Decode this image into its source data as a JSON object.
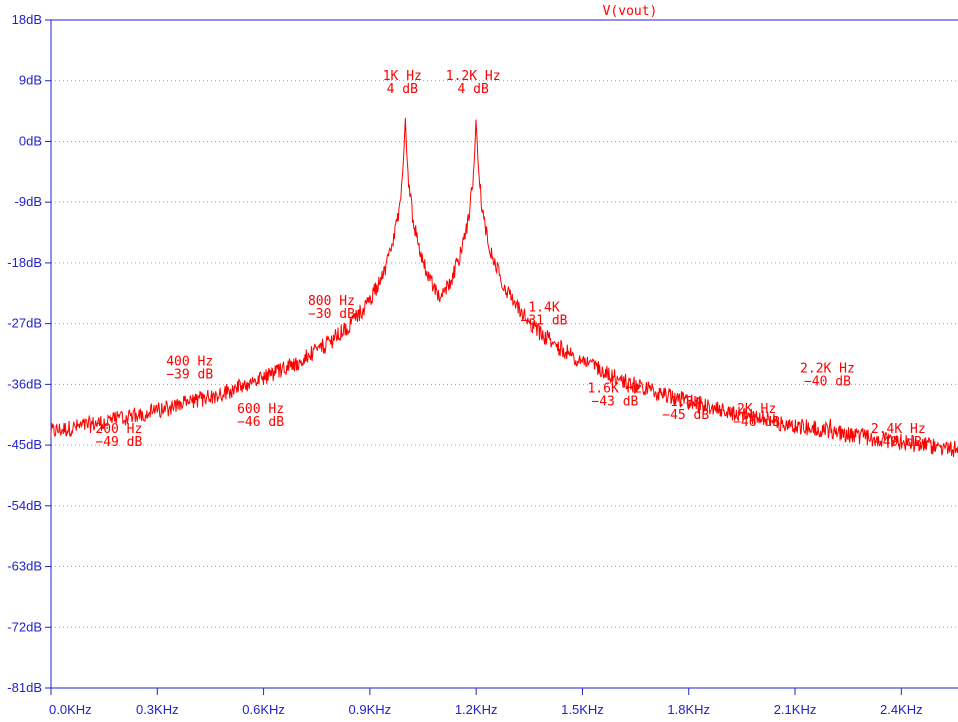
{
  "chart_data": {
    "type": "line",
    "title": "V(vout)",
    "xlabel": "",
    "ylabel": "",
    "xlim": [
      0,
      2.56
    ],
    "ylim": [
      -81,
      18
    ],
    "x_ticks": [
      "0.0KHz",
      "0.3KHz",
      "0.6KHz",
      "0.9KHz",
      "1.2KHz",
      "1.5KHz",
      "1.8KHz",
      "2.1KHz",
      "2.4KHz"
    ],
    "x_tick_values": [
      0,
      0.3,
      0.6,
      0.9,
      1.2,
      1.5,
      1.8,
      2.1,
      2.4
    ],
    "y_ticks": [
      "18dB",
      "9dB",
      "0dB",
      "-9dB",
      "-18dB",
      "-27dB",
      "-36dB",
      "-45dB",
      "-54dB",
      "-63dB",
      "-72dB",
      "-81dB"
    ],
    "y_tick_values": [
      18,
      9,
      0,
      -9,
      -18,
      -27,
      -36,
      -45,
      -54,
      -63,
      -72,
      -81
    ],
    "grid": "horizontal-dotted",
    "colors": {
      "series": "#ff0000",
      "axes": "#2222cc",
      "grid": "#9999bb"
    },
    "series": [
      {
        "values_description": "FFT magnitude spectrum with noise floor near -75 dB",
        "peaks": [
          {
            "x": 0.2,
            "y": -49,
            "label1": "200 Hz",
            "label2": "−49 dB"
          },
          {
            "x": 0.4,
            "y": -39,
            "label1": "400 Hz",
            "label2": "−39 dB"
          },
          {
            "x": 0.6,
            "y": -46,
            "label1": "600 Hz",
            "label2": "−46 dB"
          },
          {
            "x": 0.8,
            "y": -30,
            "label1": "800 Hz",
            "label2": "−30 dB"
          },
          {
            "x": 1.0,
            "y": 4,
            "label1": "1K Hz",
            "label2": "4 dB"
          },
          {
            "x": 1.2,
            "y": 4,
            "label1": "1.2K Hz",
            "label2": "4 dB"
          },
          {
            "x": 1.4,
            "y": -31,
            "label1": "1.4K",
            "label2": "−31 dB"
          },
          {
            "x": 1.6,
            "y": -43,
            "label1": "1.6K Hz",
            "label2": "−43 dB"
          },
          {
            "x": 1.8,
            "y": -45,
            "label1": "1.8K",
            "label2": "−45 dB"
          },
          {
            "x": 2.0,
            "y": -46,
            "label1": "2K Hz",
            "label2": "−46 dB"
          },
          {
            "x": 2.2,
            "y": -40,
            "label1": "2.2K Hz",
            "label2": "−40 dB"
          },
          {
            "x": 2.4,
            "y": -49,
            "label1": "2.4K Hz",
            "label2": "−49 dB"
          }
        ]
      }
    ]
  }
}
